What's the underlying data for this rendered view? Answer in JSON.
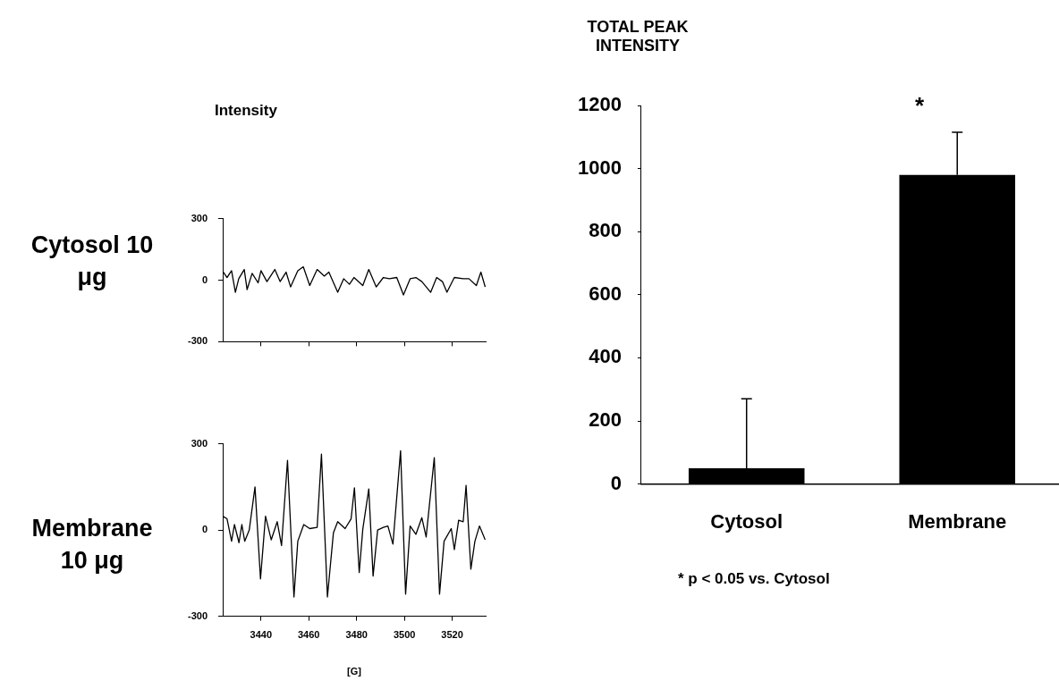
{
  "chart_data": [
    {
      "type": "line",
      "title": "Cytosol 10 μg",
      "ylabel": "Intensity",
      "xlim": [
        3424,
        3534
      ],
      "xticks": [
        3440,
        3460,
        3480,
        3500,
        3520
      ],
      "ylim": [
        -300,
        300
      ],
      "yticks": [
        -300,
        0,
        300
      ],
      "tick_labels": "y",
      "grid": false,
      "legend": false,
      "marker": "none",
      "line_style": "solid",
      "series": [
        {
          "color": "#000000",
          "x": [
            3424.3,
            3425.8,
            3427.7,
            3429.3,
            3430.7,
            3433,
            3434.2,
            3436.3,
            3438.8,
            3440,
            3442.5,
            3445.8,
            3448,
            3450.5,
            3452.4,
            3455.4,
            3457.7,
            3460.4,
            3463.5,
            3466.5,
            3468.4,
            3472.1,
            3474.6,
            3477,
            3478.9,
            3482.6,
            3485.1,
            3488.2,
            3491.2,
            3493.7,
            3496.8,
            3499.6,
            3502.4,
            3504.8,
            3507.3,
            3511,
            3513.5,
            3515.9,
            3517.8,
            3520.9,
            3524.6,
            3527,
            3530.1,
            3532,
            3533.8
          ],
          "values": [
            39,
            13,
            46,
            -59,
            7,
            52,
            -46,
            33,
            -13,
            46,
            -7,
            52,
            -7,
            39,
            -33,
            46,
            65,
            -26,
            52,
            20,
            39,
            -59,
            7,
            -20,
            13,
            -26,
            52,
            -33,
            13,
            7,
            13,
            -72,
            7,
            13,
            -7,
            -59,
            13,
            -7,
            -59,
            13,
            7,
            7,
            -26,
            39,
            -33
          ]
        }
      ]
    },
    {
      "type": "line",
      "title": "Membrane 10 μg",
      "xlabel": "[G]",
      "xlim": [
        3424,
        3534
      ],
      "xticks": [
        3440,
        3460,
        3480,
        3500,
        3520
      ],
      "ylim": [
        -300,
        300
      ],
      "yticks": [
        -300,
        0,
        300
      ],
      "grid": false,
      "legend": false,
      "marker": "none",
      "line_style": "solid",
      "series": [
        {
          "color": "#000000",
          "x": [
            3424,
            3425.8,
            3427.7,
            3428.9,
            3430.8,
            3432,
            3433.2,
            3435.1,
            3437.5,
            3439.8,
            3441.9,
            3444.3,
            3446.8,
            3448.6,
            3451.1,
            3453.8,
            3455.4,
            3457.9,
            3460.4,
            3463.5,
            3465.3,
            3467.8,
            3470.3,
            3472.1,
            3475.2,
            3477.7,
            3479.1,
            3481.1,
            3482.6,
            3485.1,
            3486.9,
            3488.8,
            3491.2,
            3493.1,
            3495.2,
            3498.4,
            3500.5,
            3502.4,
            3504.8,
            3507.3,
            3509.1,
            3512.5,
            3514.7,
            3516.6,
            3519.6,
            3520.9,
            3522.7,
            3524.6,
            3525.8,
            3527.8,
            3529.5,
            3531.4,
            3533.8
          ],
          "values": [
            48,
            39,
            -39,
            19,
            -44,
            19,
            -39,
            0,
            150,
            -170,
            48,
            -34,
            29,
            -54,
            242,
            -233,
            -39,
            19,
            5,
            9,
            264,
            -233,
            -10,
            29,
            5,
            39,
            147,
            -148,
            3,
            143,
            -160,
            0,
            9,
            14,
            -49,
            276,
            -223,
            14,
            -15,
            43,
            -24,
            252,
            -223,
            -39,
            5,
            -68,
            34,
            29,
            155,
            -136,
            -39,
            14,
            -34
          ]
        }
      ]
    },
    {
      "type": "bar",
      "title": "TOTAL PEAK INTENSITY",
      "categories": [
        "Cytosol",
        "Membrane"
      ],
      "ylim": [
        0,
        1200
      ],
      "yticks": [
        0,
        200,
        400,
        600,
        800,
        1000,
        1200
      ],
      "grid": false,
      "legend": false,
      "series": [
        {
          "color": "#000000",
          "values": [
            50,
            980
          ],
          "errors": [
            [
              50,
              270
            ],
            [
              980,
              1115
            ]
          ]
        }
      ],
      "annotations": [
        "*",
        "* p < 0.05 vs. Cytosol"
      ]
    }
  ]
}
